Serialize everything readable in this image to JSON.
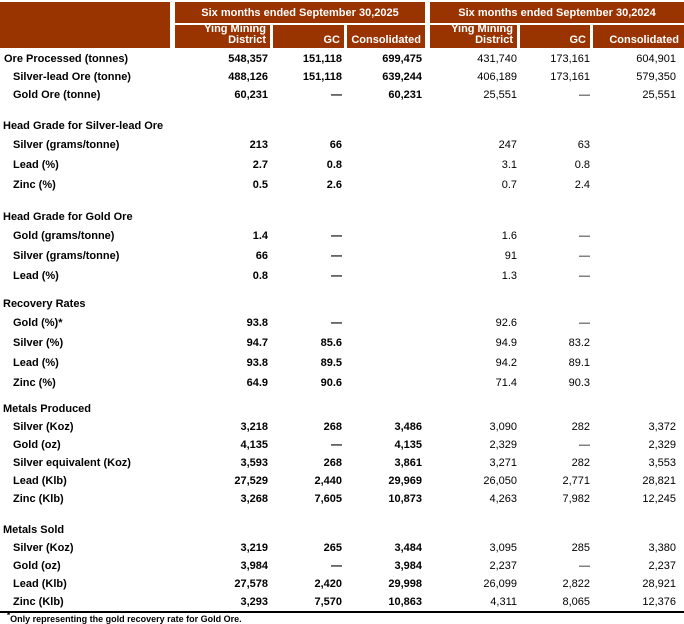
{
  "theme": {
    "header_bg": "#993300",
    "header_text": "#ffffff",
    "rule_color": "#000000"
  },
  "header": {
    "groups": [
      {
        "title": "Six months ended September 30,2025",
        "columns": [
          "Ying Mining District",
          "GC",
          "Consolidated"
        ]
      },
      {
        "title": "Six months ended September 30,2024",
        "columns": [
          "Ying Mining District",
          "GC",
          "Consolidated"
        ]
      }
    ]
  },
  "sections": [
    {
      "header": "",
      "rows": [
        {
          "label": "Ore Processed (tonnes)",
          "indent": false,
          "y2025": [
            "548,357",
            "151,118",
            "699,475"
          ],
          "y2024": [
            "431,740",
            "173,161",
            "604,901"
          ]
        },
        {
          "label": "Silver-lead Ore (tonne)",
          "indent": true,
          "y2025": [
            "488,126",
            "151,118",
            "639,244"
          ],
          "y2024": [
            "406,189",
            "173,161",
            "579,350"
          ]
        },
        {
          "label": "Gold Ore (tonne)",
          "indent": true,
          "y2025": [
            "60,231",
            "—",
            "60,231"
          ],
          "y2024": [
            "25,551",
            "—",
            "25,551"
          ]
        }
      ]
    },
    {
      "header": "Head Grade for Silver-lead Ore",
      "rows": [
        {
          "label": "Silver (grams/tonne)",
          "indent": true,
          "y2025": [
            "213",
            "66",
            ""
          ],
          "y2024": [
            "247",
            "63",
            ""
          ]
        },
        {
          "label": "Lead (%)",
          "indent": true,
          "y2025": [
            "2.7",
            "0.8",
            ""
          ],
          "y2024": [
            "3.1",
            "0.8",
            ""
          ]
        },
        {
          "label": "Zinc (%)",
          "indent": true,
          "y2025": [
            "0.5",
            "2.6",
            ""
          ],
          "y2024": [
            "0.7",
            "2.4",
            ""
          ]
        }
      ]
    },
    {
      "header": "Head Grade for Gold Ore",
      "rows": [
        {
          "label": "Gold (grams/tonne)",
          "indent": true,
          "y2025": [
            "1.4",
            "—",
            ""
          ],
          "y2024": [
            "1.6",
            "—",
            ""
          ]
        },
        {
          "label": "Silver (grams/tonne)",
          "indent": true,
          "y2025": [
            "66",
            "—",
            ""
          ],
          "y2024": [
            "91",
            "—",
            ""
          ]
        },
        {
          "label": "Lead (%)",
          "indent": true,
          "y2025": [
            "0.8",
            "—",
            ""
          ],
          "y2024": [
            "1.3",
            "—",
            ""
          ]
        }
      ]
    },
    {
      "header": "Recovery Rates",
      "rows": [
        {
          "label": "Gold (%)*",
          "indent": true,
          "y2025": [
            "93.8",
            "—",
            ""
          ],
          "y2024": [
            "92.6",
            "—",
            ""
          ]
        },
        {
          "label": "Silver (%)",
          "indent": true,
          "y2025": [
            "94.7",
            "85.6",
            ""
          ],
          "y2024": [
            "94.9",
            "83.2",
            ""
          ]
        },
        {
          "label": "Lead (%)",
          "indent": true,
          "y2025": [
            "93.8",
            "89.5",
            ""
          ],
          "y2024": [
            "94.2",
            "89.1",
            ""
          ]
        },
        {
          "label": "Zinc (%)",
          "indent": true,
          "y2025": [
            "64.9",
            "90.6",
            ""
          ],
          "y2024": [
            "71.4",
            "90.3",
            ""
          ]
        }
      ]
    },
    {
      "header": "Metals Produced",
      "rows": [
        {
          "label": "Silver (Koz)",
          "indent": true,
          "y2025": [
            "3,218",
            "268",
            "3,486"
          ],
          "y2024": [
            "3,090",
            "282",
            "3,372"
          ]
        },
        {
          "label": "Gold (oz)",
          "indent": true,
          "y2025": [
            "4,135",
            "—",
            "4,135"
          ],
          "y2024": [
            "2,329",
            "—",
            "2,329"
          ]
        },
        {
          "label": "Silver equivalent (Koz)",
          "indent": true,
          "y2025": [
            "3,593",
            "268",
            "3,861"
          ],
          "y2024": [
            "3,271",
            "282",
            "3,553"
          ]
        },
        {
          "label": "Lead (Klb)",
          "indent": true,
          "y2025": [
            "27,529",
            "2,440",
            "29,969"
          ],
          "y2024": [
            "26,050",
            "2,771",
            "28,821"
          ]
        },
        {
          "label": "Zinc (Klb)",
          "indent": true,
          "y2025": [
            "3,268",
            "7,605",
            "10,873"
          ],
          "y2024": [
            "4,263",
            "7,982",
            "12,245"
          ]
        }
      ]
    },
    {
      "header": "Metals Sold",
      "rows": [
        {
          "label": "Silver (Koz)",
          "indent": true,
          "y2025": [
            "3,219",
            "265",
            "3,484"
          ],
          "y2024": [
            "3,095",
            "285",
            "3,380"
          ]
        },
        {
          "label": "Gold (oz)",
          "indent": true,
          "y2025": [
            "3,984",
            "—",
            "3,984"
          ],
          "y2024": [
            "2,237",
            "—",
            "2,237"
          ]
        },
        {
          "label": "Lead (Klb)",
          "indent": true,
          "y2025": [
            "27,578",
            "2,420",
            "29,998"
          ],
          "y2024": [
            "26,099",
            "2,822",
            "28,921"
          ]
        },
        {
          "label": "Zinc (Klb)",
          "indent": true,
          "y2025": [
            "3,293",
            "7,570",
            "10,863"
          ],
          "y2024": [
            "4,311",
            "8,065",
            "12,376"
          ]
        }
      ]
    }
  ],
  "footnote": {
    "marker": "*",
    "text": "Only representing the gold recovery rate for Gold Ore."
  }
}
